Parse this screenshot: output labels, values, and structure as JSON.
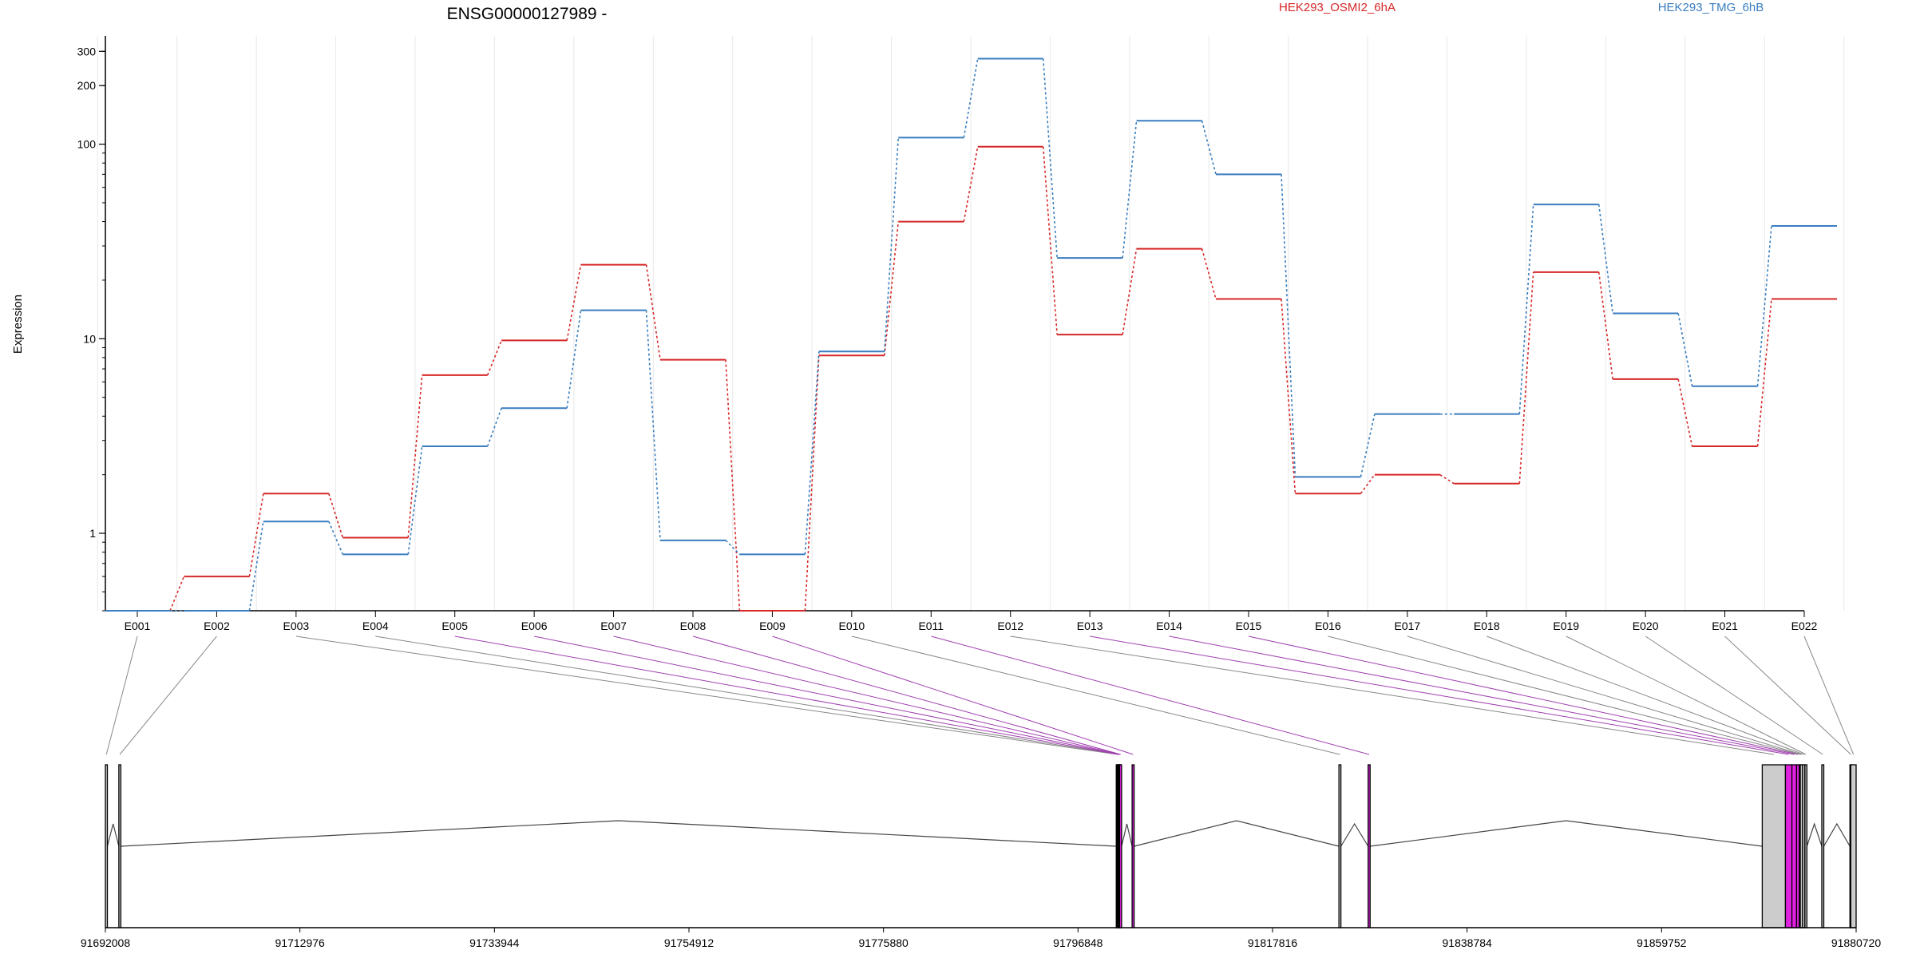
{
  "chart_data": {
    "type": "line",
    "title": "ENSG00000127989 -",
    "ylabel": "Expression",
    "y_scale": "log",
    "ylim": [
      0.4,
      360
    ],
    "y_ticks": [
      {
        "value": 1,
        "label": "1"
      },
      {
        "value": 10,
        "label": "10"
      },
      {
        "value": 100,
        "label": "100"
      },
      {
        "value": 200,
        "label": "200"
      },
      {
        "value": 300,
        "label": "300"
      }
    ],
    "categories": [
      "E001",
      "E002",
      "E003",
      "E004",
      "E005",
      "E006",
      "E007",
      "E008",
      "E009",
      "E010",
      "E011",
      "E012",
      "E013",
      "E014",
      "E015",
      "E016",
      "E017",
      "E018",
      "E019",
      "E020",
      "E021",
      "E022"
    ],
    "series": [
      {
        "name": "HEK293_OSMI2_6hA",
        "color": "#d62728",
        "values": [
          0.4,
          0.6,
          1.6,
          0.95,
          6.5,
          9.8,
          24,
          7.8,
          0.4,
          8.2,
          40,
          97,
          10.5,
          29,
          16,
          1.6,
          2.0,
          1.8,
          22,
          6.2,
          2.8,
          16
        ]
      },
      {
        "name": "HEK293_TMG_6hB",
        "color": "#3a7dbf",
        "values": [
          0.4,
          0.4,
          1.15,
          0.78,
          2.8,
          4.4,
          14,
          0.92,
          0.78,
          8.6,
          108,
          275,
          26,
          132,
          70,
          1.95,
          4.1,
          4.1,
          49,
          13.5,
          5.7,
          38
        ]
      }
    ],
    "vertical_grid": true,
    "gene_model": {
      "coordinate_ticks": [
        "91692008",
        "91712976",
        "91733944",
        "91754912",
        "91775880",
        "91796848",
        "91817816",
        "91838784",
        "91859752",
        "91880720"
      ],
      "start": 91692008,
      "end": 91880720,
      "highlight_color": "#e020e0",
      "connector_color": "#a040b0",
      "exons": [
        {
          "id": "E001",
          "start": 91692008,
          "end": 91692150,
          "fill": "#cccccc",
          "highlighted": false
        },
        {
          "id": "E002",
          "start": 91693460,
          "end": 91693560,
          "fill": "#cccccc",
          "highlighted": false
        },
        {
          "id": "E003",
          "start": 91800970,
          "end": 91801030,
          "fill": "#cccccc",
          "highlighted": false
        },
        {
          "id": "E004",
          "start": 91801030,
          "end": 91801110,
          "fill": "#cccccc",
          "highlighted": false
        },
        {
          "id": "E005",
          "start": 91801110,
          "end": 91801190,
          "fill": "#cccccc",
          "highlighted": true
        },
        {
          "id": "E006",
          "start": 91801190,
          "end": 91801270,
          "fill": "#cccccc",
          "highlighted": true
        },
        {
          "id": "E007",
          "start": 91801270,
          "end": 91801330,
          "fill": "#cccccc",
          "highlighted": true
        },
        {
          "id": "E008",
          "start": 91801330,
          "end": 91801430,
          "fill": "#cccccc",
          "highlighted": true
        },
        {
          "id": "E009",
          "start": 91802680,
          "end": 91802790,
          "fill": "#cccccc",
          "highlighted": true
        },
        {
          "id": "E010",
          "start": 91824970,
          "end": 91825050,
          "fill": "#cccccc",
          "highlighted": false
        },
        {
          "id": "E011",
          "start": 91828120,
          "end": 91828200,
          "fill": "#cccccc",
          "highlighted": true
        },
        {
          "id": "E012",
          "start": 91870600,
          "end": 91873100,
          "fill": "#cccccc",
          "highlighted": false
        },
        {
          "id": "E013",
          "start": 91873100,
          "end": 91873800,
          "fill": "#cccccc",
          "highlighted": true
        },
        {
          "id": "E014",
          "start": 91873800,
          "end": 91874300,
          "fill": "#cccccc",
          "highlighted": true
        },
        {
          "id": "E015",
          "start": 91874300,
          "end": 91874600,
          "fill": "#cccccc",
          "highlighted": true
        },
        {
          "id": "E016",
          "start": 91874600,
          "end": 91874700,
          "fill": "#cccccc",
          "highlighted": false
        },
        {
          "id": "E017",
          "start": 91874700,
          "end": 91874950,
          "fill": "#cccccc",
          "highlighted": false
        },
        {
          "id": "E018",
          "start": 91874950,
          "end": 91875200,
          "fill": "#cccccc",
          "highlighted": false
        },
        {
          "id": "E019",
          "start": 91875200,
          "end": 91875400,
          "fill": "#cccccc",
          "highlighted": false
        },
        {
          "id": "E020",
          "start": 91877020,
          "end": 91877100,
          "fill": "#cccccc",
          "highlighted": false
        },
        {
          "id": "E021",
          "start": 91880050,
          "end": 91880150,
          "fill": "#cccccc",
          "highlighted": false
        },
        {
          "id": "E022",
          "start": 91880150,
          "end": 91880720,
          "fill": "#cccccc",
          "highlighted": false
        }
      ]
    }
  }
}
